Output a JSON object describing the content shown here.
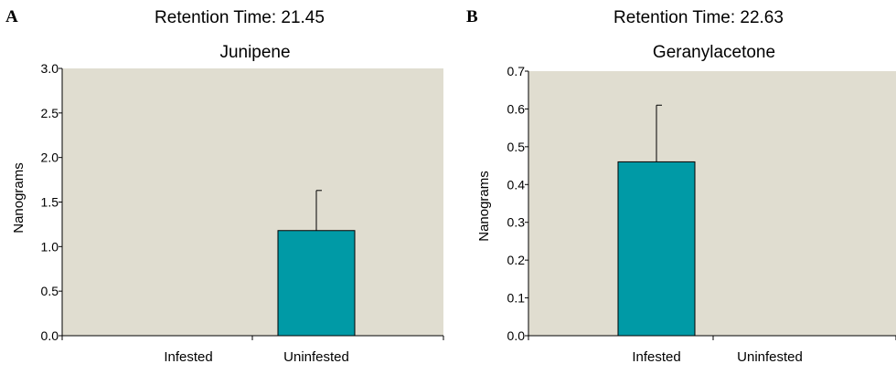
{
  "panels": [
    {
      "letter": "A",
      "title": "Retention Time: 21.45",
      "subtitle": "Junipene"
    },
    {
      "letter": "B",
      "title": "Retention Time: 22.63",
      "subtitle": "Geranylacetone"
    }
  ],
  "colors": {
    "plot_bg": "#e0ddd0",
    "bar": "#009aa6",
    "axis": "#000000"
  },
  "chart_data": [
    {
      "type": "bar",
      "title": "Retention Time: 21.45",
      "subtitle": "Junipene",
      "categories": [
        "Infested",
        "Uninfested"
      ],
      "values": [
        0,
        1.18
      ],
      "error_upper": [
        0,
        0.45
      ],
      "ylabel": "Nanograms",
      "xlabel": "",
      "ylim": [
        0,
        3.0
      ],
      "yticks": [
        "0.0",
        "0.5",
        "1.0",
        "1.5",
        "2.0",
        "2.5",
        "3.0"
      ],
      "grid": false
    },
    {
      "type": "bar",
      "title": "Retention Time: 22.63",
      "subtitle": "Geranylacetone",
      "categories": [
        "Infested",
        "Uninfested"
      ],
      "values": [
        0.46,
        0
      ],
      "error_upper": [
        0.15,
        0
      ],
      "ylabel": "Nanograms",
      "xlabel": "",
      "ylim": [
        0,
        0.7
      ],
      "yticks": [
        "0.0",
        "0.1",
        "0.2",
        "0.3",
        "0.4",
        "0.5",
        "0.6",
        "0.7"
      ],
      "grid": false
    }
  ]
}
